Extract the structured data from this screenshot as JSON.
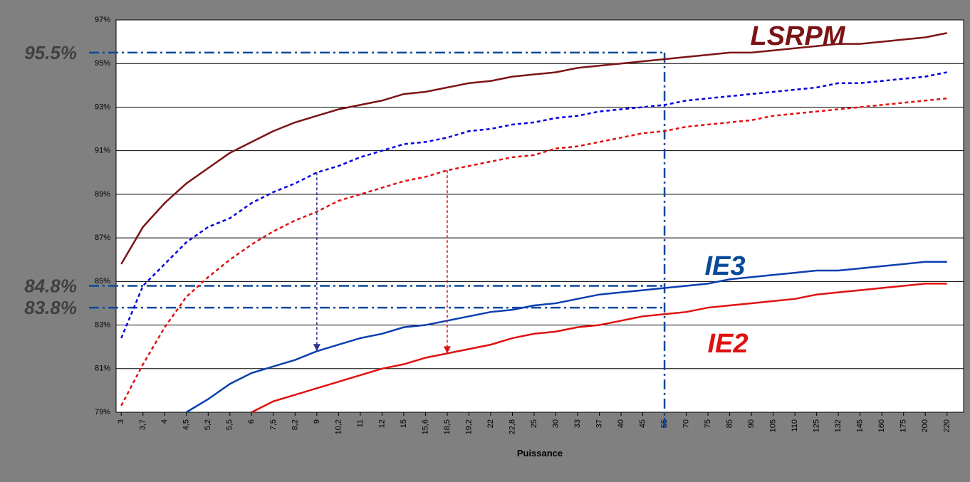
{
  "chart_data": {
    "type": "line",
    "x_label": "Puissance",
    "categories": [
      "3",
      "3,7",
      "4",
      "4,5",
      "5,2",
      "5,5",
      "6",
      "7,5",
      "8,2",
      "9",
      "10,2",
      "11",
      "12",
      "15",
      "15,6",
      "18,5",
      "19,2",
      "22",
      "22,8",
      "25",
      "30",
      "33",
      "37",
      "40",
      "45",
      "55",
      "70",
      "75",
      "85",
      "90",
      "105",
      "110",
      "125",
      "132",
      "145",
      "160",
      "175",
      "200",
      "220"
    ],
    "ylim": [
      79,
      97
    ],
    "yticks": [
      {
        "value": 79,
        "label": "79%"
      },
      {
        "value": 81,
        "label": "81%"
      },
      {
        "value": 83,
        "label": "83%"
      },
      {
        "value": 85,
        "label": "85%"
      },
      {
        "value": 87,
        "label": "87%"
      },
      {
        "value": 89,
        "label": "89%"
      },
      {
        "value": 91,
        "label": "91%"
      },
      {
        "value": 93,
        "label": "93%"
      },
      {
        "value": 95,
        "label": "95%"
      },
      {
        "value": 97,
        "label": "97%"
      }
    ],
    "grid": true,
    "series": [
      {
        "name": "LSRPM",
        "color": "#7b1416",
        "style": "solid",
        "values": [
          85.8,
          87.5,
          88.6,
          89.5,
          90.2,
          90.9,
          91.4,
          91.9,
          92.3,
          92.6,
          92.9,
          93.1,
          93.3,
          93.6,
          93.7,
          93.9,
          94.1,
          94.2,
          94.4,
          94.5,
          94.6,
          94.8,
          94.9,
          95.0,
          95.1,
          95.2,
          95.3,
          95.4,
          95.5,
          95.5,
          95.6,
          95.7,
          95.8,
          95.9,
          95.9,
          96.0,
          96.1,
          96.2,
          96.4
        ]
      },
      {
        "color": "#0000e0",
        "style": "dotted",
        "values": [
          82.4,
          84.8,
          85.8,
          86.8,
          87.5,
          87.9,
          88.6,
          89.1,
          89.5,
          90.0,
          90.3,
          90.7,
          91.0,
          91.3,
          91.4,
          91.6,
          91.9,
          92.0,
          92.2,
          92.3,
          92.5,
          92.6,
          92.8,
          92.9,
          93.0,
          93.1,
          93.3,
          93.4,
          93.5,
          93.6,
          93.7,
          93.8,
          93.9,
          94.1,
          94.1,
          94.2,
          94.3,
          94.4,
          94.6
        ]
      },
      {
        "color": "#e01010",
        "style": "dotted",
        "values": [
          79.3,
          81.2,
          82.9,
          84.3,
          85.2,
          86.0,
          86.7,
          87.3,
          87.8,
          88.2,
          88.7,
          89.0,
          89.3,
          89.6,
          89.8,
          90.1,
          90.3,
          90.5,
          90.7,
          90.8,
          91.1,
          91.2,
          91.4,
          91.6,
          91.8,
          91.9,
          92.1,
          92.2,
          92.3,
          92.4,
          92.6,
          92.7,
          92.8,
          92.9,
          93.0,
          93.1,
          93.2,
          93.3,
          93.4
        ]
      },
      {
        "name": "IE3",
        "color": "#0a3fb0",
        "style": "solid",
        "values": [
          null,
          null,
          null,
          79.0,
          79.6,
          80.3,
          80.8,
          81.1,
          81.4,
          81.8,
          82.1,
          82.4,
          82.6,
          82.9,
          83.0,
          83.2,
          83.4,
          83.6,
          83.7,
          83.9,
          84.0,
          84.2,
          84.4,
          84.5,
          84.6,
          84.7,
          84.8,
          84.9,
          85.1,
          85.2,
          85.3,
          85.4,
          85.5,
          85.5,
          85.6,
          85.7,
          85.8,
          85.9,
          85.9
        ]
      },
      {
        "name": "IE2",
        "color": "#e01010",
        "style": "solid",
        "values": [
          null,
          null,
          null,
          null,
          null,
          null,
          79.0,
          79.5,
          79.8,
          80.1,
          80.4,
          80.7,
          81.0,
          81.2,
          81.5,
          81.7,
          81.9,
          82.1,
          82.4,
          82.6,
          82.7,
          82.9,
          83.0,
          83.2,
          83.4,
          83.5,
          83.6,
          83.8,
          83.9,
          84.0,
          84.1,
          84.2,
          84.4,
          84.5,
          84.6,
          84.7,
          84.8,
          84.9,
          84.9
        ]
      }
    ],
    "reference_x": "55",
    "annotations": [
      {
        "value": 95.5,
        "label": "95.5%"
      },
      {
        "value": 84.8,
        "label": "84.8%"
      },
      {
        "value": 83.8,
        "label": "83.8%"
      }
    ]
  }
}
